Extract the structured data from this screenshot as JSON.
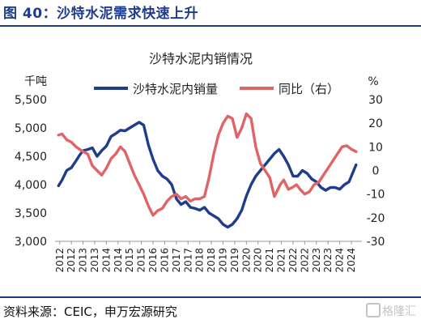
{
  "header": {
    "title": "图 40：沙特水泥需求快速上升"
  },
  "footer": {
    "source": "资料来源：CEIC，申万宏源研究",
    "watermark": "格隆汇"
  },
  "chart_data": {
    "type": "line",
    "title": "沙特水泥内销情况",
    "y_left_unit": "千吨",
    "y_right_unit": "%",
    "ylim_left": [
      3000,
      5500
    ],
    "ylim_right": [
      -30,
      30
    ],
    "yticks_left": [
      3000,
      3500,
      4000,
      4500,
      5000,
      5500
    ],
    "ytick_labels_left": [
      "3,000",
      "3,500",
      "4,000",
      "4,500",
      "5,000",
      "5,500"
    ],
    "yticks_right": [
      -30,
      -20,
      -10,
      0,
      10,
      20,
      30
    ],
    "xlim": [
      2011.8,
      2024.95
    ],
    "x_tick_labels": [
      "2012",
      "2012",
      "2013",
      "2013",
      "2014",
      "2014",
      "2015",
      "2015",
      "2016",
      "2016",
      "2017",
      "2017",
      "2018",
      "2018",
      "2019",
      "2019",
      "2020",
      "2020",
      "2021",
      "2021",
      "2022",
      "2022",
      "2023",
      "2023",
      "2024",
      "2024"
    ],
    "legend_position": "top",
    "series": [
      {
        "name": "沙特水泥内销量",
        "axis": "left",
        "color": "#1f3d8a",
        "x": [
          2011.95,
          2012.1,
          2012.3,
          2012.5,
          2012.7,
          2012.85,
          2013.0,
          2013.2,
          2013.4,
          2013.6,
          2013.8,
          2014.0,
          2014.2,
          2014.4,
          2014.6,
          2014.8,
          2015.0,
          2015.2,
          2015.4,
          2015.6,
          2015.8,
          2016.0,
          2016.2,
          2016.4,
          2016.6,
          2016.8,
          2017.0,
          2017.2,
          2017.4,
          2017.6,
          2017.8,
          2018.0,
          2018.2,
          2018.4,
          2018.6,
          2018.8,
          2019.0,
          2019.2,
          2019.4,
          2019.6,
          2019.8,
          2020.0,
          2020.2,
          2020.4,
          2020.6,
          2020.8,
          2021.0,
          2021.2,
          2021.4,
          2021.6,
          2021.8,
          2022.0,
          2022.2,
          2022.4,
          2022.6,
          2022.8,
          2023.0,
          2023.2,
          2023.4,
          2023.6,
          2023.8,
          2024.0,
          2024.2,
          2024.4,
          2024.6,
          2024.7
        ],
        "values": [
          3980,
          4080,
          4250,
          4300,
          4420,
          4520,
          4600,
          4620,
          4650,
          4500,
          4600,
          4680,
          4850,
          4900,
          4960,
          4950,
          5000,
          5050,
          5100,
          5050,
          4700,
          4450,
          4250,
          4150,
          4100,
          4000,
          3750,
          3650,
          3700,
          3600,
          3580,
          3550,
          3600,
          3500,
          3450,
          3400,
          3300,
          3250,
          3300,
          3400,
          3550,
          3800,
          4000,
          4150,
          4250,
          4350,
          4450,
          4550,
          4620,
          4500,
          4350,
          4150,
          4150,
          4250,
          4200,
          4100,
          4050,
          3950,
          3900,
          3950,
          3950,
          3920,
          4000,
          4050,
          4250,
          4350
        ]
      },
      {
        "name": "同比（右）",
        "axis": "right",
        "color": "#e06466",
        "x": [
          2011.95,
          2012.1,
          2012.3,
          2012.5,
          2012.7,
          2012.85,
          2013.0,
          2013.2,
          2013.4,
          2013.6,
          2013.8,
          2014.0,
          2014.2,
          2014.4,
          2014.6,
          2014.8,
          2015.0,
          2015.2,
          2015.4,
          2015.6,
          2015.8,
          2016.0,
          2016.2,
          2016.4,
          2016.6,
          2016.8,
          2017.0,
          2017.2,
          2017.4,
          2017.6,
          2017.8,
          2018.0,
          2018.2,
          2018.4,
          2018.6,
          2018.8,
          2019.0,
          2019.2,
          2019.4,
          2019.6,
          2019.8,
          2020.0,
          2020.2,
          2020.4,
          2020.6,
          2020.8,
          2021.0,
          2021.1,
          2021.2,
          2021.3,
          2021.45,
          2021.6,
          2021.8,
          2022.0,
          2022.15,
          2022.3,
          2022.5,
          2022.7,
          2022.9,
          2023.1,
          2023.3,
          2023.5,
          2023.7,
          2023.9,
          2024.1,
          2024.3,
          2024.5,
          2024.7
        ],
        "values": [
          15,
          15.5,
          13,
          12,
          10,
          9,
          8,
          7,
          2,
          0,
          -2,
          1,
          5,
          7,
          10,
          8,
          3,
          -2,
          -6,
          -10,
          -15,
          -19,
          -17,
          -16,
          -13,
          -11,
          -10,
          -12,
          -11,
          -13,
          -12,
          -12,
          -11,
          -3,
          7,
          15,
          20,
          23,
          22,
          14,
          18,
          24,
          22,
          10,
          3,
          0,
          -3,
          -7,
          -11,
          -9,
          -6,
          -4,
          -8,
          -7,
          -6,
          -8,
          -10,
          -9,
          -6,
          -5,
          -2,
          1,
          4,
          7,
          10,
          10.5,
          9,
          8
        ]
      }
    ]
  }
}
